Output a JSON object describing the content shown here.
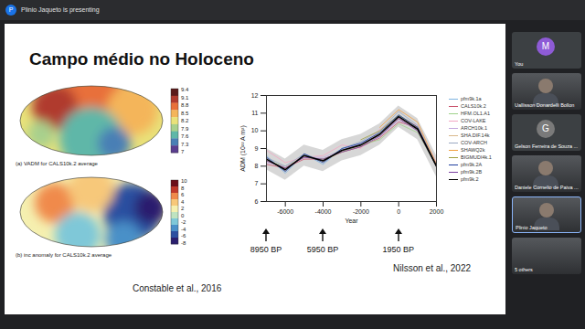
{
  "window": {
    "presenter_initial": "P",
    "presenter_banner": "Plinio Jaqueto is presenting",
    "participants": [
      {
        "name": "You",
        "initial": "M",
        "color": "#8e5bd6"
      },
      {
        "name": "Uallisson Donardelli Bollon"
      },
      {
        "name": "Gelson Ferreira de Souza ...",
        "initial": "G",
        "color": "#7a7a7a"
      },
      {
        "name": "Daniele Cornelio de Paiva ..."
      },
      {
        "name": "Plinio Jaqueto",
        "speaking": true
      },
      {
        "name": "5 others"
      }
    ]
  },
  "slide": {
    "title": "Campo médio no Holoceno",
    "maps": [
      {
        "caption": "(a) VADM for CALS10k.2 average",
        "colorbar": {
          "ticks": [
            9.4,
            9.1,
            8.8,
            8.5,
            8.2,
            7.9,
            7.6,
            7.3,
            7
          ],
          "colors": [
            "#5a1a1a",
            "#b03a2e",
            "#e8703a",
            "#f4b55a",
            "#e9e27a",
            "#a8d08d",
            "#5fb7a8",
            "#4a7fb5",
            "#5a3d8f"
          ]
        }
      },
      {
        "caption": "(b) inc anomaly for CALS10k.2 average",
        "colorbar": {
          "ticks": [
            10,
            8,
            6,
            4,
            2,
            0,
            -2,
            -4,
            -6,
            -8
          ],
          "colors": [
            "#6b0f1a",
            "#c0392b",
            "#f08a4b",
            "#f7c87a",
            "#f5f0b0",
            "#bfe3c0",
            "#7fc8d8",
            "#4a90c8",
            "#2c4fa0",
            "#2a1e6e"
          ]
        }
      }
    ],
    "maps_source": "Constable et al., 2016",
    "chart_source": "Nilsson et al., 2022"
  },
  "chart_data": {
    "type": "line",
    "xlabel": "Year",
    "ylabel": "ADM (10²² A m²)",
    "x": [
      -7000,
      -6000,
      -5000,
      -4000,
      -3000,
      -2000,
      -1000,
      0,
      1000,
      2000
    ],
    "xlim": [
      -7000,
      2000
    ],
    "xticks": [
      -6000,
      -4000,
      -2000,
      0,
      2000
    ],
    "ylim": [
      6,
      12
    ],
    "yticks": [
      6,
      7,
      8,
      9,
      10,
      11,
      12
    ],
    "grid": false,
    "legend": "right",
    "series": [
      {
        "name": "pfm9k.1a",
        "color": "#7fb3e0",
        "values": [
          8.6,
          7.6,
          8.7,
          8.1,
          9.0,
          9.3,
          9.9,
          10.9,
          10.0,
          8.0
        ]
      },
      {
        "name": "CALS10k.2",
        "color": "#c8506a",
        "values": [
          8.1,
          7.9,
          8.4,
          8.4,
          8.8,
          9.1,
          9.6,
          10.5,
          10.2,
          8.1
        ]
      },
      {
        "name": "HFM.OL1.A1",
        "color": "#9fd38a",
        "values": [
          8.3,
          8.0,
          8.5,
          8.4,
          8.8,
          9.2,
          9.5,
          10.4,
          9.9,
          8.0
        ]
      },
      {
        "name": "COV-LAKE",
        "color": "#f2a7c3",
        "values": [
          8.9,
          8.2,
          8.5,
          8.6,
          9.2,
          9.0,
          10.1,
          10.7,
          10.3,
          8.2
        ]
      },
      {
        "name": "ARCH10k.1",
        "color": "#c3a6dd",
        "values": [
          8.2,
          8.0,
          8.5,
          8.5,
          8.9,
          9.3,
          9.7,
          10.6,
          10.1,
          8.1
        ]
      },
      {
        "name": "SHA.DIF.14k",
        "color": "#d9b98c",
        "values": [
          8.3,
          7.9,
          8.6,
          8.3,
          8.8,
          9.1,
          9.9,
          10.7,
          10.0,
          8.0
        ]
      },
      {
        "name": "COV-ARCH",
        "color": "#9aa9c2",
        "values": [
          8.5,
          8.0,
          8.7,
          8.3,
          9.0,
          9.4,
          10.0,
          11.1,
          10.3,
          8.1
        ]
      },
      {
        "name": "SHAWQ2k",
        "color": "#f0a040",
        "values": [
          null,
          null,
          null,
          null,
          null,
          null,
          10.2,
          11.2,
          10.5,
          8.1
        ]
      },
      {
        "name": "BIGMUDI4k.1",
        "color": "#a0a040",
        "values": [
          null,
          null,
          null,
          null,
          null,
          9.5,
          10.0,
          10.9,
          10.2,
          8.0
        ]
      },
      {
        "name": "pfm9k.2A",
        "color": "#1f3f9f",
        "values": [
          8.5,
          7.7,
          8.7,
          8.2,
          9.0,
          9.3,
          9.9,
          10.9,
          10.2,
          8.0
        ]
      },
      {
        "name": "pfm9k.2B",
        "color": "#7b3fa0",
        "values": [
          8.3,
          7.9,
          8.5,
          8.4,
          8.8,
          9.1,
          9.7,
          10.7,
          10.0,
          8.0
        ]
      },
      {
        "name": "pfm9k.2",
        "color": "#000000",
        "values": [
          8.4,
          7.8,
          8.6,
          8.3,
          8.9,
          9.2,
          9.8,
          10.8,
          10.1,
          8.0
        ],
        "lower": [
          7.8,
          7.2,
          8.0,
          7.7,
          8.3,
          8.6,
          9.2,
          10.2,
          9.5,
          7.4
        ],
        "upper": [
          9.0,
          8.4,
          9.2,
          8.9,
          9.5,
          9.8,
          10.4,
          11.4,
          10.7,
          8.6
        ]
      }
    ],
    "annotations": [
      {
        "x": -7000,
        "text": "8950 BP"
      },
      {
        "x": -4000,
        "text": "5950 BP"
      },
      {
        "x": 0,
        "text": "1950 BP"
      }
    ]
  }
}
